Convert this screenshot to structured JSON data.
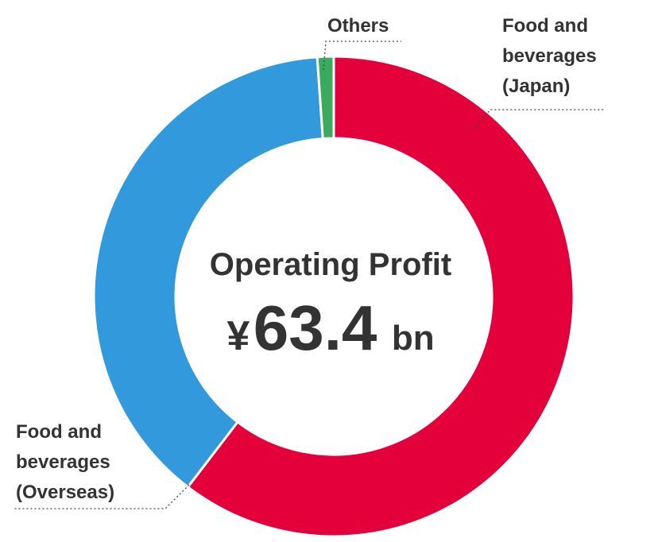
{
  "chart_data": {
    "type": "pie",
    "style": "donut",
    "center_title": "Operating Profit",
    "center_value": {
      "currency": "¥",
      "amount": "63.4",
      "unit": "bn"
    },
    "slices": [
      {
        "label_lines": [
          "Food and",
          "beverages",
          "(Japan)"
        ],
        "value": 60.4,
        "color": "#e4003a",
        "label_position": "top-right"
      },
      {
        "label_lines": [
          "Food and",
          "beverages",
          "(Overseas)"
        ],
        "value": 38.5,
        "color": "#3399dd",
        "label_position": "bottom-left"
      },
      {
        "label_lines": [
          "Others"
        ],
        "value": 1.1,
        "color": "#3aaa5c",
        "label_position": "top"
      }
    ],
    "value_unit": "%",
    "start_angle_deg": 0,
    "direction": "clockwise"
  }
}
